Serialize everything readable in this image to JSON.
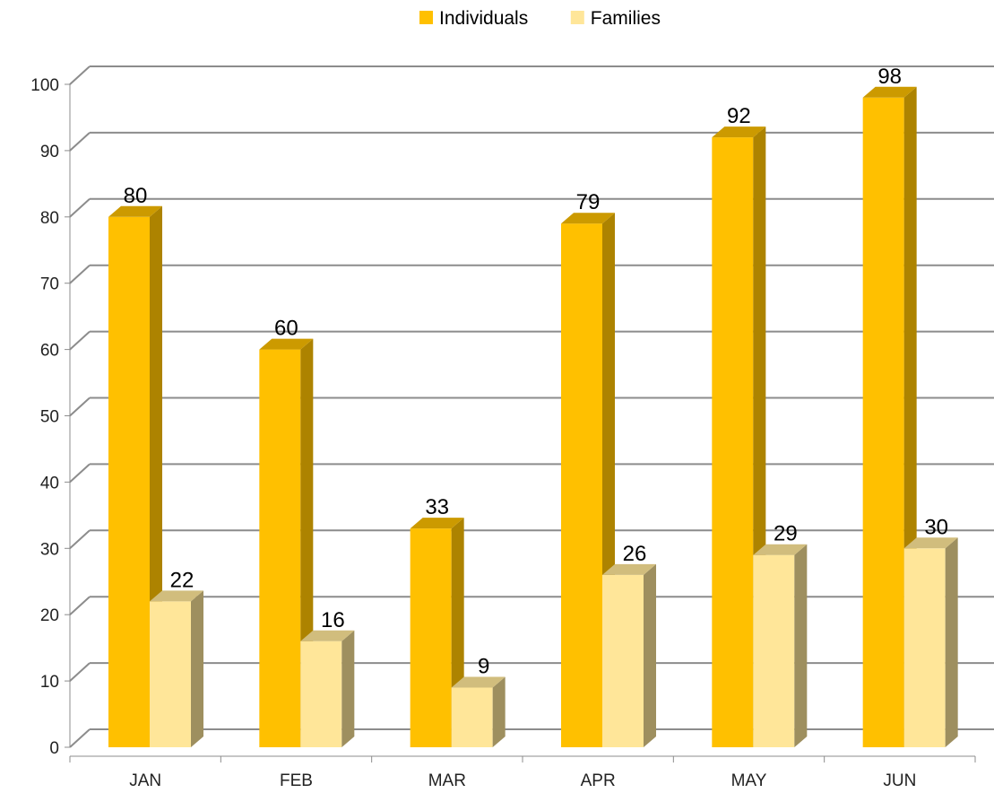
{
  "chart_data": {
    "type": "bar",
    "title": "",
    "xlabel": "",
    "ylabel": "",
    "categories": [
      "JAN",
      "FEB",
      "MAR",
      "APR",
      "MAY",
      "JUN"
    ],
    "series": [
      {
        "name": "Individuals",
        "values": [
          80,
          60,
          33,
          79,
          92,
          98
        ],
        "color": "#FFC000"
      },
      {
        "name": "Families",
        "values": [
          22,
          16,
          9,
          26,
          29,
          30
        ],
        "color": "#FFE699"
      }
    ],
    "ylim": [
      0,
      100
    ],
    "yticks": [
      "0",
      "10",
      "20",
      "30",
      "40",
      "50",
      "60",
      "70",
      "80",
      "90",
      "100"
    ],
    "grid": true,
    "legend_position": "top-center",
    "style": "3d-clustered-column"
  }
}
